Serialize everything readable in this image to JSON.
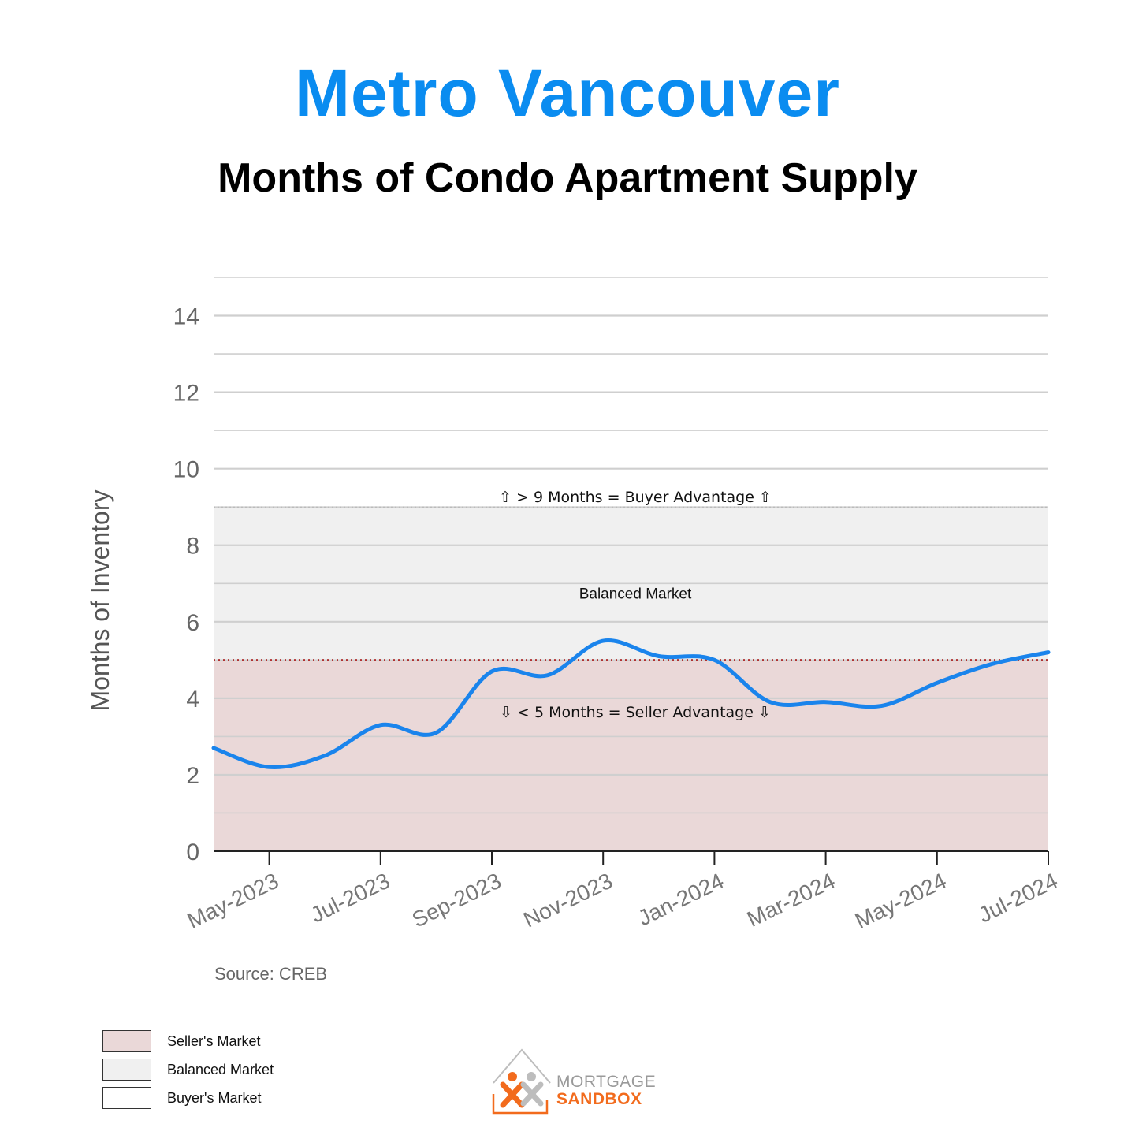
{
  "title": "Metro Vancouver",
  "subtitle": "Months of Condo Apartment Supply",
  "colors": {
    "title": "#0a8cf0",
    "line": "#1a84ec",
    "seller_zone": "#ead8d8",
    "balanced_zone": "#f0f0f0",
    "buyer_zone": "#ffffff",
    "threshold_line": "#b03030"
  },
  "chart_data": {
    "type": "line",
    "title": "Metro Vancouver",
    "subtitle": "Months of Condo Apartment Supply",
    "xlabel": "",
    "ylabel": "Months of Inventory",
    "ylim": [
      0,
      15
    ],
    "yticks": [
      0,
      2,
      4,
      6,
      8,
      10,
      12,
      14
    ],
    "x": [
      "Apr-2023",
      "May-2023",
      "Jun-2023",
      "Jul-2023",
      "Aug-2023",
      "Sep-2023",
      "Oct-2023",
      "Nov-2023",
      "Dec-2023",
      "Jan-2024",
      "Feb-2024",
      "Mar-2024",
      "Apr-2024",
      "May-2024",
      "Jun-2024",
      "Jul-2024"
    ],
    "xtick_labels": [
      "May-2023",
      "Jul-2023",
      "Sep-2023",
      "Nov-2023",
      "Jan-2024",
      "Mar-2024",
      "May-2024",
      "Jul-2024"
    ],
    "series": [
      {
        "values": [
          2.7,
          2.2,
          2.5,
          3.3,
          3.1,
          4.7,
          4.6,
          5.5,
          5.1,
          5.0,
          3.9,
          3.9,
          3.8,
          4.4,
          4.9,
          5.2
        ]
      }
    ],
    "zones": [
      {
        "name": "Seller's Market",
        "from": 0,
        "to": 5
      },
      {
        "name": "Balanced Market",
        "from": 5,
        "to": 9
      },
      {
        "name": "Buyer's Market",
        "from": 9,
        "to": 15
      }
    ],
    "annotations": {
      "buyer": "⇧ > 9 Months = Buyer Advantage ⇧",
      "balanced": "Balanced Market",
      "seller": "⇩ < 5 Months = Seller Advantage ⇩"
    },
    "source": "Source: CREB",
    "grid": true
  },
  "legend": [
    {
      "label": "Seller's Market",
      "color": "#ead8d8"
    },
    {
      "label": "Balanced Market",
      "color": "#f0f0f0"
    },
    {
      "label": "Buyer's Market",
      "color": "#ffffff"
    }
  ],
  "logo": {
    "line1": "MORTGAGE",
    "line2": "SANDBOX"
  }
}
